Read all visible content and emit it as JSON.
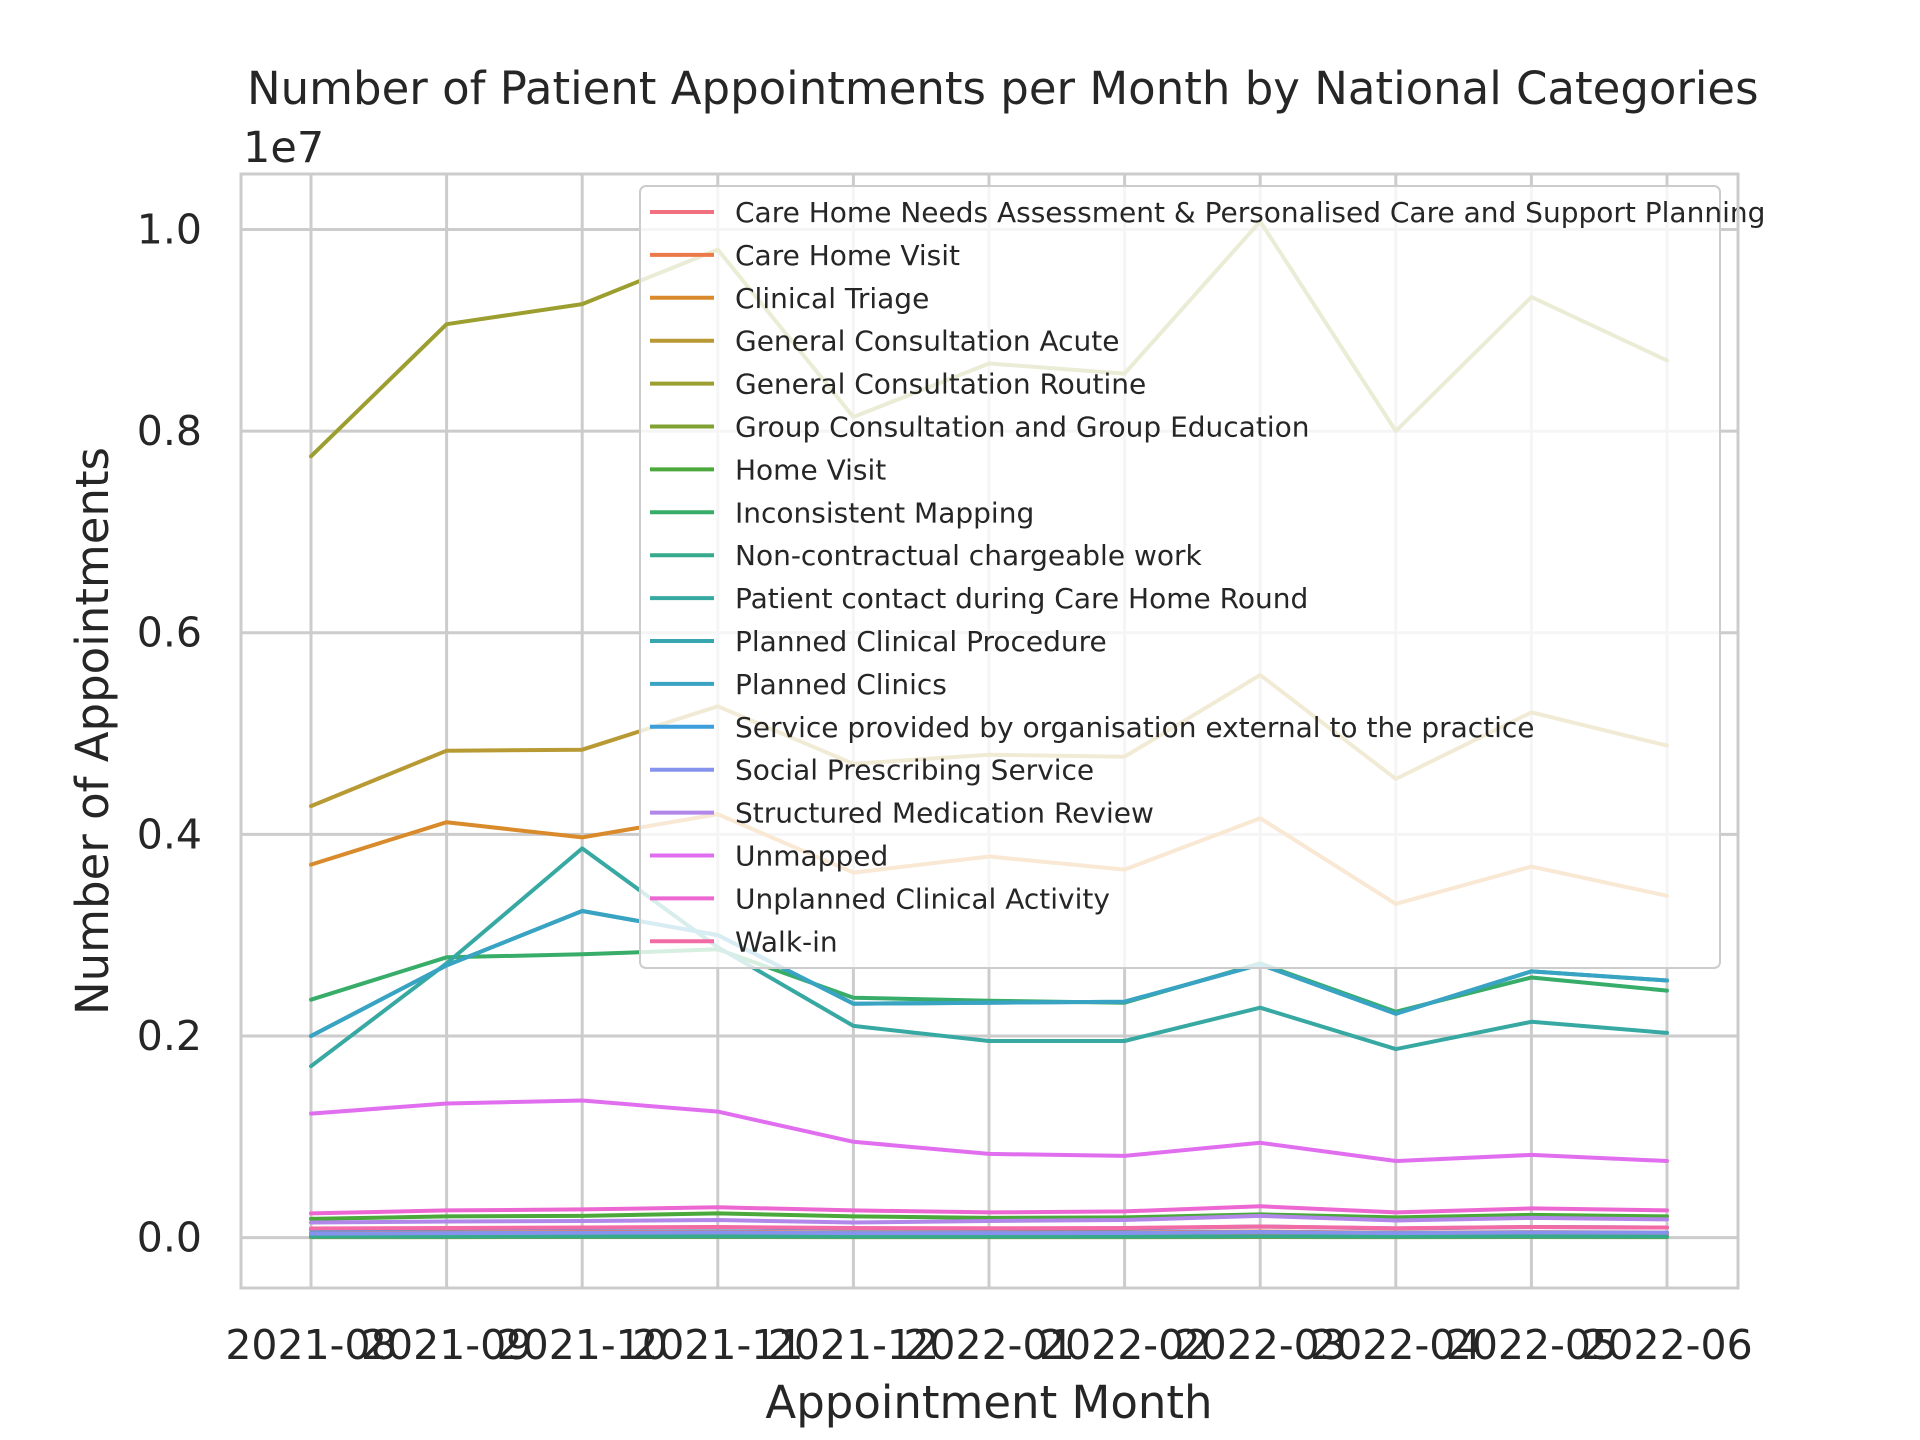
{
  "chart_data": {
    "type": "line",
    "title": "Number of Patient Appointments per Month by National Categories",
    "xlabel": "Appointment Month",
    "ylabel": "Number of Appointments",
    "y_offset_label": "1e7",
    "y_scale": 10000000,
    "ylim": [
      -500000,
      10550000
    ],
    "y_ticks": [
      0.0,
      0.2,
      0.4,
      0.6,
      0.8,
      1.0
    ],
    "y_tick_labels": [
      "0.0",
      "0.2",
      "0.4",
      "0.6",
      "0.8",
      "1.0"
    ],
    "grid": true,
    "legend_position": "top-right",
    "categories": [
      "2021-08",
      "2021-09",
      "2021-10",
      "2021-11",
      "2021-12",
      "2022-01",
      "2022-02",
      "2022-03",
      "2022-04",
      "2022-05",
      "2022-06"
    ],
    "series": [
      {
        "name": "Care Home Needs Assessment & Personalised Care and Support Planning",
        "color": "#f0707f",
        "values": [
          30000,
          32000,
          34000,
          36000,
          30000,
          30000,
          32000,
          38000,
          30000,
          34000,
          32000
        ]
      },
      {
        "name": "Care Home Visit",
        "color": "#ec7a48",
        "values": [
          50000,
          52000,
          55000,
          58000,
          50000,
          50000,
          52000,
          60000,
          48000,
          54000,
          50000
        ]
      },
      {
        "name": "Clinical Triage",
        "color": "#d98b2c",
        "values": [
          3700000,
          4120000,
          3970000,
          4200000,
          3620000,
          3780000,
          3650000,
          4160000,
          3310000,
          3680000,
          3390000
        ]
      },
      {
        "name": "General Consultation Acute",
        "color": "#b89a35",
        "values": [
          4280000,
          4830000,
          4840000,
          5270000,
          4700000,
          4790000,
          4770000,
          5580000,
          4550000,
          5210000,
          4880000
        ]
      },
      {
        "name": "General Consultation Routine",
        "color": "#9c9e30",
        "values": [
          7750000,
          9060000,
          9260000,
          9800000,
          8140000,
          8670000,
          8570000,
          10080000,
          8000000,
          9330000,
          8700000
        ]
      },
      {
        "name": "Group Consultation and Group Education",
        "color": "#7fa233",
        "values": [
          5000,
          5000,
          6000,
          6000,
          5000,
          5000,
          5000,
          6000,
          5000,
          6000,
          5000
        ]
      },
      {
        "name": "Home Visit",
        "color": "#4aa93a",
        "values": [
          185000,
          210000,
          215000,
          240000,
          210000,
          195000,
          200000,
          230000,
          200000,
          225000,
          210000
        ]
      },
      {
        "name": "Inconsistent Mapping",
        "color": "#37ad69",
        "values": [
          2360000,
          2780000,
          2810000,
          2860000,
          2380000,
          2350000,
          2330000,
          2720000,
          2240000,
          2580000,
          2450000
        ]
      },
      {
        "name": "Non-contractual chargeable work",
        "color": "#35aa8d",
        "values": [
          10000,
          10000,
          11000,
          11000,
          10000,
          10000,
          10000,
          12000,
          10000,
          11000,
          10000
        ]
      },
      {
        "name": "Patient contact during Care Home Round",
        "color": "#37a9a2",
        "values": [
          1700000,
          2720000,
          3860000,
          2880000,
          2100000,
          1950000,
          1950000,
          2280000,
          1870000,
          2140000,
          2030000
        ]
      },
      {
        "name": "Planned Clinical Procedure",
        "color": "#38a6b1",
        "values": [
          2000000,
          2700000,
          3240000,
          3000000,
          2320000,
          2330000,
          2340000,
          2710000,
          2220000,
          2640000,
          2550000
        ]
      },
      {
        "name": "Planned Clinics",
        "color": "#39a3c3",
        "values": [
          2000000,
          2700000,
          3240000,
          3000000,
          2320000,
          2330000,
          2340000,
          2710000,
          2220000,
          2640000,
          2550000
        ]
      },
      {
        "name": "Service provided by organisation external to the practice",
        "color": "#3c9edb",
        "values": [
          80000,
          90000,
          95000,
          100000,
          90000,
          88000,
          90000,
          110000,
          90000,
          105000,
          100000
        ]
      },
      {
        "name": "Social Prescribing Service",
        "color": "#8593ec",
        "values": [
          40000,
          45000,
          48000,
          52000,
          45000,
          45000,
          46000,
          55000,
          45000,
          52000,
          50000
        ]
      },
      {
        "name": "Structured Medication Review",
        "color": "#b187ea",
        "values": [
          150000,
          160000,
          165000,
          175000,
          150000,
          165000,
          175000,
          215000,
          170000,
          195000,
          180000
        ]
      },
      {
        "name": "Unmapped",
        "color": "#e06eef",
        "values": [
          1230000,
          1330000,
          1360000,
          1250000,
          950000,
          830000,
          810000,
          940000,
          760000,
          820000,
          760000
        ]
      },
      {
        "name": "Unplanned Clinical Activity",
        "color": "#ec67d2",
        "values": [
          240000,
          270000,
          280000,
          300000,
          270000,
          250000,
          260000,
          310000,
          250000,
          290000,
          270000
        ]
      },
      {
        "name": "Walk-in",
        "color": "#f26ba4",
        "values": [
          90000,
          95000,
          100000,
          105000,
          95000,
          92000,
          95000,
          110000,
          92000,
          105000,
          100000
        ]
      }
    ]
  }
}
